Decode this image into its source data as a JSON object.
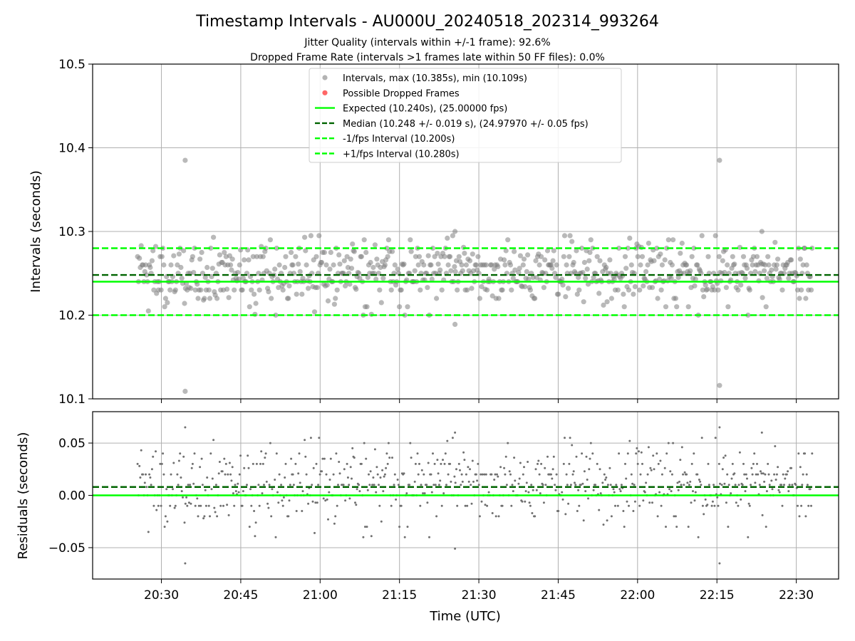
{
  "title": "Timestamp Intervals - AU000U_20240518_202314_993264",
  "subtitle_lines": [
    "Jitter Quality (intervals within +/-1 frame): 92.6%",
    "Dropped Frame Rate (intervals >1 frames late within 50 FF files): 0.0%"
  ],
  "colors": {
    "points": "#808080",
    "dropped": "#ff0000",
    "expected": "#00ff00",
    "median": "#006400",
    "grid": "#b0b0b0"
  },
  "chart_data": [
    {
      "type": "scatter",
      "xlabel": "",
      "ylabel": "Intervals (seconds)",
      "ylim": [
        10.1,
        10.5
      ],
      "xlim": [
        "20:17",
        "22:38"
      ],
      "y_ticks": [
        "10.1",
        "10.2",
        "10.3",
        "10.4",
        "10.5"
      ],
      "grid": true,
      "legend_position": "top-center",
      "series": [
        {
          "name": "Intervals, max (10.385s), min (10.109s)",
          "kind": "points"
        },
        {
          "name": "Possible Dropped Frames",
          "kind": "points",
          "count": 0
        },
        {
          "name": "Expected (10.240s), (25.00000 fps)",
          "kind": "hline",
          "y": 10.24,
          "style": "solid"
        },
        {
          "name": "Median (10.248 +/- 0.019 s), (24.97970 +/- 0.05 fps)",
          "kind": "hline",
          "y": 10.248,
          "style": "dashed"
        },
        {
          "name": "-1/fps Interval (10.200s)",
          "kind": "hline",
          "y": 10.2,
          "style": "dashed"
        },
        {
          "name": "+1/fps Interval (10.280s)",
          "kind": "hline",
          "y": 10.28,
          "style": "dashed"
        }
      ],
      "sample_interval_seconds": 10.24,
      "x_start": "20:25:30",
      "x_end": "22:33:00",
      "baseline": 10.24,
      "spread": 0.019,
      "outliers": [
        {
          "x": "20:34:30",
          "y": 10.385
        },
        {
          "x": "20:34:30",
          "y": 10.109
        },
        {
          "x": "22:15:30",
          "y": 10.385
        },
        {
          "x": "22:15:30",
          "y": 10.116
        },
        {
          "x": "22:23:30",
          "y": 10.3
        },
        {
          "x": "21:25:30",
          "y": 10.3
        },
        {
          "x": "21:25:30",
          "y": 10.189
        }
      ]
    },
    {
      "type": "scatter",
      "xlabel": "Time (UTC)",
      "ylabel": "Residuals (seconds)",
      "ylim": [
        -0.08,
        0.08
      ],
      "xlim": [
        "20:17",
        "22:38"
      ],
      "y_ticks": [
        "−0.05",
        "0.00",
        "0.05"
      ],
      "x_ticks": [
        "20:30",
        "20:45",
        "21:00",
        "21:15",
        "21:30",
        "21:45",
        "22:00",
        "22:15",
        "22:30"
      ],
      "grid": true,
      "series": [
        {
          "kind": "points"
        },
        {
          "kind": "hline",
          "y": 0.0,
          "style": "solid"
        },
        {
          "kind": "hline",
          "y": 0.008,
          "style": "dashed"
        }
      ]
    }
  ]
}
